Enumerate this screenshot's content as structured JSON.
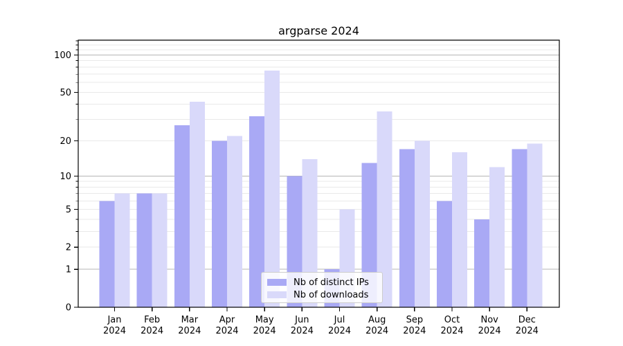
{
  "title": "argparse 2024",
  "legend": {
    "items": [
      {
        "label": "Nb of distinct IPs"
      },
      {
        "label": "Nb of downloads"
      }
    ]
  },
  "chart_data": {
    "type": "bar",
    "title": "argparse 2024",
    "categories": [
      "Jan",
      "Feb",
      "Mar",
      "Apr",
      "May",
      "Jun",
      "Jul",
      "Aug",
      "Sep",
      "Oct",
      "Nov",
      "Dec"
    ],
    "x_year_label": "2024",
    "series": [
      {
        "name": "Nb of distinct IPs",
        "color": "#a9a9f5",
        "values": [
          6,
          7,
          27,
          20,
          32,
          10,
          1,
          13,
          17,
          6,
          4,
          17
        ]
      },
      {
        "name": "Nb of downloads",
        "color": "#d9d9fa",
        "values": [
          7,
          7,
          42,
          22,
          75,
          14,
          5,
          35,
          20,
          16,
          12,
          19
        ]
      }
    ],
    "yscale": "log1p",
    "ylim": [
      0,
      131
    ],
    "y_ticks": [
      0,
      1,
      2,
      5,
      10,
      20,
      50,
      100
    ],
    "y_major_gridlines": [
      1,
      10,
      100
    ],
    "y_minor_gridlines": [
      2,
      3,
      4,
      5,
      6,
      7,
      8,
      9,
      20,
      30,
      40,
      50,
      60,
      70,
      80,
      90,
      110,
      120,
      130
    ],
    "grid": true,
    "legend_position": "lower center",
    "colors": {
      "major_grid": "#b5b5b5",
      "minor_grid": "#e9e9e9",
      "spine": "#000000",
      "tick_label": "#000000"
    }
  }
}
